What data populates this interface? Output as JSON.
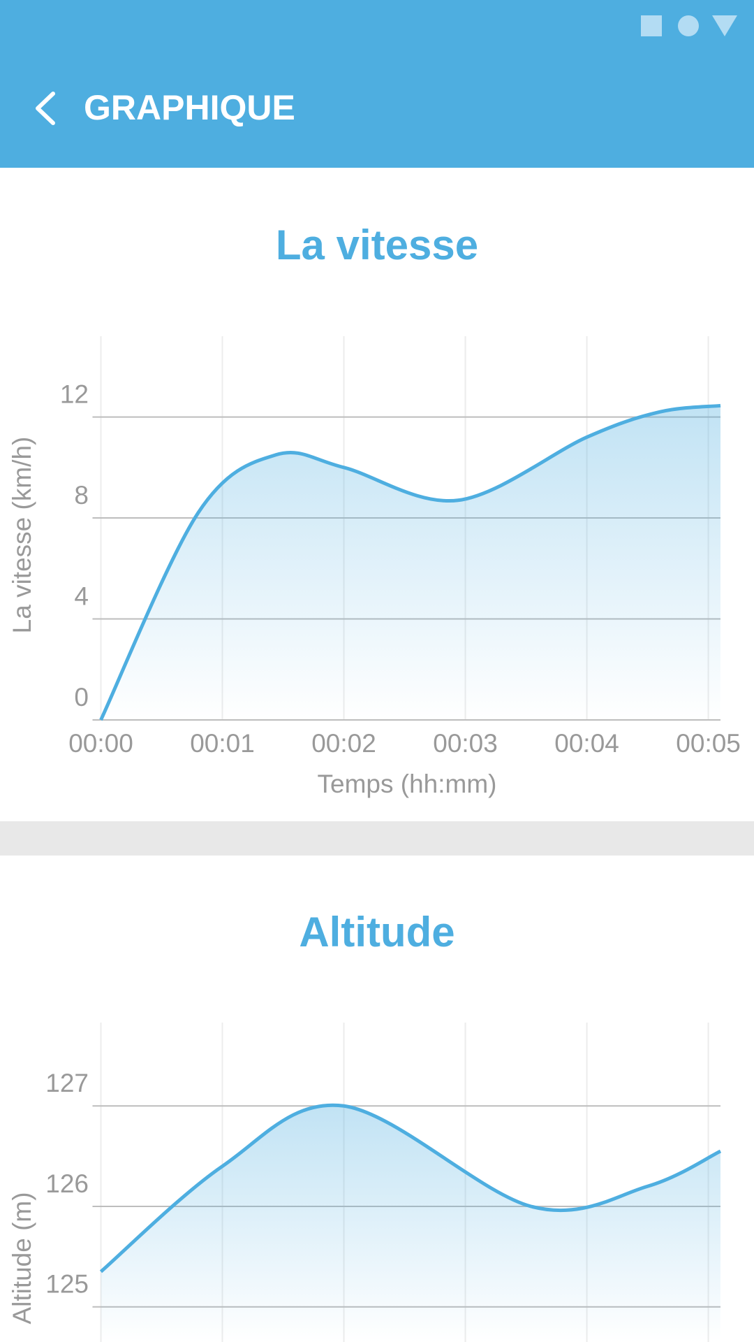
{
  "header": {
    "title": "GRAPHIQUE"
  },
  "chart_data": [
    {
      "type": "line",
      "title": "La vitesse",
      "x_label": "Temps (hh:mm)",
      "y_label": "La vitesse (km/h)",
      "x": [
        0,
        0.8,
        1.44,
        2,
        2.94,
        4,
        4.6,
        5.1
      ],
      "values": [
        0,
        8.2,
        10.5,
        10.0,
        8.7,
        11.2,
        12.2,
        12.45
      ],
      "color": "#4eaee0",
      "xlim": [
        0,
        5.1
      ],
      "xticks": [
        {
          "value": 0,
          "label": "00:00"
        },
        {
          "value": 1,
          "label": "00:01"
        },
        {
          "value": 2,
          "label": "00:02"
        },
        {
          "value": 3,
          "label": "00:03"
        },
        {
          "value": 4,
          "label": "00:04"
        },
        {
          "value": 5,
          "label": "00:05"
        }
      ],
      "ylim": [
        0,
        15.2
      ],
      "yticks": [
        0,
        4,
        8,
        12
      ],
      "grid": true
    },
    {
      "type": "line",
      "title": "Altitude",
      "y_label": "Altitude (m)",
      "x": [
        0,
        1,
        2,
        3.54,
        4.5,
        5.1
      ],
      "values": [
        125.35,
        126.4,
        127.0,
        126.0,
        126.2,
        126.55
      ],
      "color": "#4eaee0",
      "xlim": [
        0,
        5.1
      ],
      "xticks": [
        0,
        1,
        2,
        3,
        4,
        5
      ],
      "ylim": [
        124.65,
        127.83
      ],
      "yticks": [
        125,
        126,
        127
      ],
      "grid": true
    }
  ]
}
